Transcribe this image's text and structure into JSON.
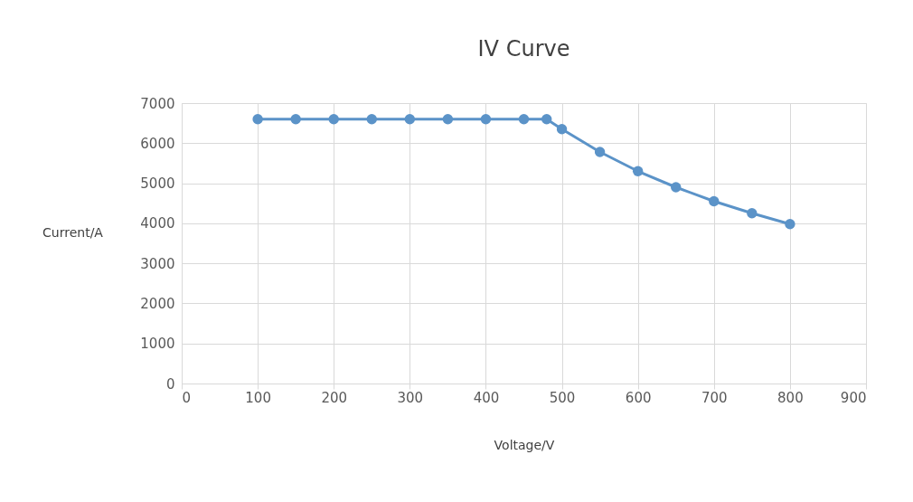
{
  "chart_data": {
    "type": "line",
    "title": "IV Curve",
    "xlabel": "Voltage/V",
    "ylabel": "Current/A",
    "x": [
      100,
      150,
      200,
      250,
      300,
      350,
      400,
      450,
      480,
      500,
      550,
      600,
      650,
      700,
      750,
      800
    ],
    "series": [
      {
        "color": "#5b93c8",
        "values": [
          6600,
          6600,
          6600,
          6600,
          6600,
          6600,
          6600,
          6600,
          6600,
          6350,
          5780,
          5300,
          4900,
          4550,
          4250,
          3980
        ]
      }
    ],
    "xlim": [
      0,
      900
    ],
    "xticks": [
      0,
      100,
      200,
      300,
      400,
      500,
      600,
      700,
      800,
      900
    ],
    "ylim": [
      0,
      7000
    ],
    "yticks": [
      0,
      1000,
      2000,
      3000,
      4000,
      5000,
      6000,
      7000
    ],
    "grid": true,
    "marker": "circle",
    "line_style": "solid"
  }
}
